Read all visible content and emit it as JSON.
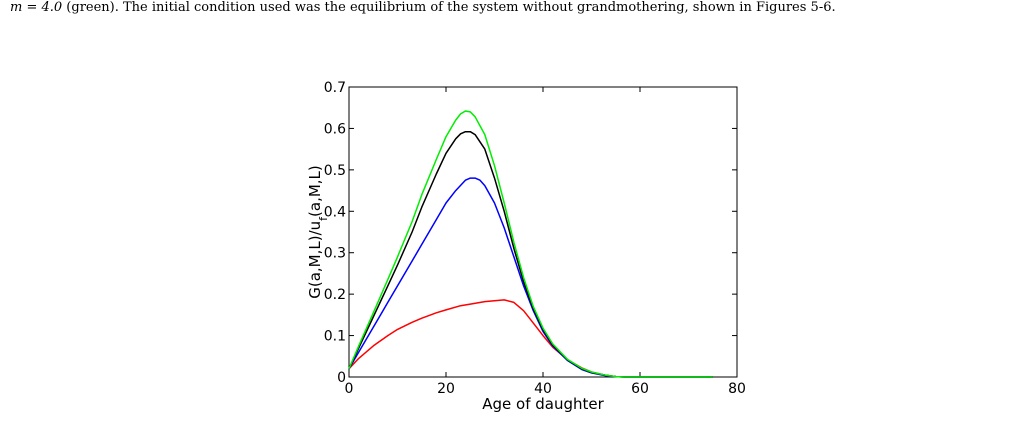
{
  "caption": {
    "math_prefix": "m = 4.0",
    "text": " (green). The initial condition used was the equilibrium of the system without grandmothering, shown in Figures 5-6."
  },
  "chart_data": {
    "type": "line",
    "xlabel": "Age of daughter",
    "ylabel": "G(a,M,L)/u_f(a,M,L)",
    "ylabel_main": "G(a,M,L)/u",
    "ylabel_sub": "f",
    "ylabel_tail": "(a,M,L)",
    "xlim": [
      0,
      80
    ],
    "ylim": [
      0,
      0.7
    ],
    "xticks": [
      0,
      20,
      40,
      60,
      80
    ],
    "xtick_labels": [
      "0",
      "20",
      "40",
      "60",
      "80"
    ],
    "yticks": [
      0,
      0.1,
      0.2,
      0.3,
      0.4,
      0.5,
      0.6,
      0.7
    ],
    "ytick_labels": [
      "0",
      "0.1",
      "0.2",
      "0.3",
      "0.4",
      "0.5",
      "0.6",
      "0.7"
    ],
    "grid": false,
    "series": [
      {
        "color": "#ff0000",
        "x": [
          0,
          2,
          5,
          8,
          10,
          13,
          15,
          18,
          20,
          23,
          25,
          28,
          30,
          32,
          34,
          36,
          38,
          40,
          42,
          45,
          48,
          50,
          53,
          55,
          57,
          60,
          65,
          70,
          75
        ],
        "y": [
          0.02,
          0.045,
          0.075,
          0.1,
          0.115,
          0.132,
          0.142,
          0.155,
          0.162,
          0.172,
          0.176,
          0.182,
          0.184,
          0.186,
          0.18,
          0.16,
          0.13,
          0.1,
          0.072,
          0.042,
          0.022,
          0.012,
          0.004,
          0.001,
          0.0,
          0.0,
          0.0,
          0.0,
          0.0
        ]
      },
      {
        "color": "#0000ff",
        "x": [
          0,
          2,
          5,
          8,
          10,
          13,
          15,
          18,
          20,
          22,
          24,
          25,
          26,
          27,
          28,
          30,
          32,
          34,
          36,
          38,
          40,
          42,
          45,
          48,
          50,
          53,
          55,
          57,
          60,
          65,
          70,
          75
        ],
        "y": [
          0.02,
          0.06,
          0.12,
          0.18,
          0.22,
          0.28,
          0.32,
          0.38,
          0.42,
          0.45,
          0.475,
          0.48,
          0.48,
          0.475,
          0.462,
          0.42,
          0.36,
          0.29,
          0.22,
          0.16,
          0.11,
          0.075,
          0.04,
          0.018,
          0.01,
          0.003,
          0.001,
          0.0,
          0.0,
          0.0,
          0.0,
          0.0
        ]
      },
      {
        "color": "#000000",
        "x": [
          0,
          2,
          5,
          8,
          10,
          13,
          15,
          18,
          20,
          22,
          23,
          24,
          25,
          26,
          28,
          30,
          32,
          34,
          36,
          38,
          40,
          42,
          45,
          48,
          50,
          53,
          55,
          57,
          60,
          65,
          70,
          75
        ],
        "y": [
          0.02,
          0.07,
          0.145,
          0.22,
          0.27,
          0.35,
          0.41,
          0.49,
          0.54,
          0.575,
          0.587,
          0.592,
          0.592,
          0.585,
          0.55,
          0.48,
          0.4,
          0.31,
          0.23,
          0.165,
          0.115,
          0.078,
          0.042,
          0.02,
          0.011,
          0.004,
          0.001,
          0.0,
          0.0,
          0.0,
          0.0,
          0.0
        ]
      },
      {
        "color": "#00ee00",
        "x": [
          0,
          2,
          5,
          8,
          10,
          13,
          15,
          18,
          20,
          22,
          23,
          24,
          25,
          26,
          28,
          30,
          32,
          34,
          36,
          38,
          40,
          42,
          45,
          48,
          50,
          53,
          55,
          57,
          60,
          65,
          70,
          75
        ],
        "y": [
          0.02,
          0.075,
          0.155,
          0.235,
          0.29,
          0.375,
          0.44,
          0.525,
          0.58,
          0.62,
          0.635,
          0.642,
          0.64,
          0.628,
          0.585,
          0.51,
          0.42,
          0.325,
          0.24,
          0.17,
          0.118,
          0.08,
          0.043,
          0.021,
          0.012,
          0.004,
          0.001,
          0.0,
          0.0,
          0.0,
          0.0,
          0.0
        ]
      }
    ]
  }
}
